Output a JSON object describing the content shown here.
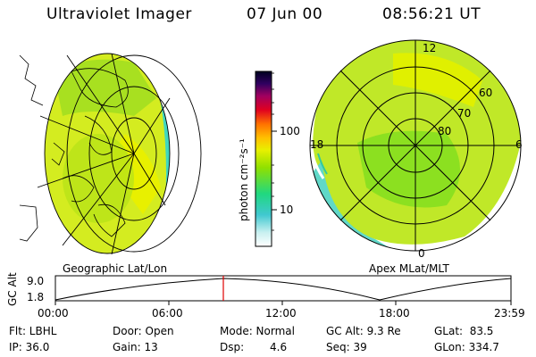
{
  "header": {
    "title": "Ultraviolet Imager",
    "date": "07 Jun 00",
    "time": "08:56:21 UT"
  },
  "colorbar": {
    "unit": "photon cm⁻²s⁻¹",
    "tick_100": "100",
    "tick_10": "10"
  },
  "left_map": {
    "label": "Geographic Lat/Lon"
  },
  "right_map": {
    "label": "Apex MLat/MLT",
    "mlt_12": "12",
    "mlt_18": "18",
    "mlt_6": "6",
    "mlt_0": "0",
    "lat_60": "60",
    "lat_70": "70",
    "lat_80": "80"
  },
  "altitude_plot": {
    "ylabel": "GC Alt",
    "ytick_top": "9.0",
    "ytick_bottom": "1.8",
    "xticks": [
      "00:00",
      "06:00",
      "12:00",
      "18:00",
      "23:59"
    ]
  },
  "footer": {
    "filter": "Flt: LBHL",
    "ip": "IP: 36.0",
    "door": "Door: Open",
    "gain": "Gain: 13",
    "mode": "Mode: Normal",
    "dsp_label": "Dsp:",
    "dsp_value": "4.6",
    "gc_alt": "GC Alt: 9.3 Re",
    "seq": "Seq: 39",
    "glat": "GLat:  83.5",
    "glon": "GLon: 334.7"
  },
  "colors": {
    "aurora_green": "#a8e800",
    "aurora_yellow": "#e8f000",
    "edge_cyan": "#40d8d0",
    "marker_red": "#e00000"
  }
}
